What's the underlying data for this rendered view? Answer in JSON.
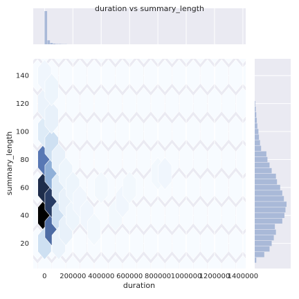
{
  "chart_data": {
    "type": "hexbin-joint",
    "title": "duration vs summary_length",
    "xlabel": "duration",
    "ylabel": "summary_length",
    "xlim": [
      -80000,
      1420000
    ],
    "ylim": [
      2,
      152
    ],
    "x_ticks": [
      0,
      200000,
      400000,
      600000,
      800000,
      1000000,
      1200000,
      1400000
    ],
    "x_tick_labels": [
      "0",
      "200000",
      "400000",
      "600000",
      "800000",
      "1000000",
      "1200000",
      "1400000"
    ],
    "y_ticks": [
      20,
      40,
      60,
      80,
      100,
      120,
      140
    ],
    "y_tick_labels": [
      "20",
      "40",
      "60",
      "80",
      "100",
      "120",
      "140"
    ],
    "grid": true,
    "colors": {
      "background": "#eaeaf2",
      "grid": "#ffffff",
      "hex_base": "#f7fbff",
      "hex_dark": "#000000",
      "hist_fill": "#a9b9d8",
      "text": "#262626"
    },
    "hexbin": {
      "x_spacing": 100000,
      "y_spacing": 20,
      "cells": [
        {
          "x": 0,
          "y": 40,
          "v": 1.0
        },
        {
          "x": 0,
          "y": 60,
          "v": 0.85
        },
        {
          "x": 0,
          "y": 80,
          "v": 0.55
        },
        {
          "x": 0,
          "y": 100,
          "v": 0.1
        },
        {
          "x": 0,
          "y": 120,
          "v": 0.05
        },
        {
          "x": 0,
          "y": 140,
          "v": 0.03
        },
        {
          "x": 0,
          "y": 20,
          "v": 0.15
        },
        {
          "x": 50000,
          "y": 30,
          "v": 0.6
        },
        {
          "x": 50000,
          "y": 50,
          "v": 0.8
        },
        {
          "x": 50000,
          "y": 70,
          "v": 0.35
        },
        {
          "x": 50000,
          "y": 90,
          "v": 0.15
        },
        {
          "x": 50000,
          "y": 110,
          "v": 0.06
        },
        {
          "x": 50000,
          "y": 130,
          "v": 0.04
        },
        {
          "x": 100000,
          "y": 40,
          "v": 0.15
        },
        {
          "x": 100000,
          "y": 60,
          "v": 0.1
        },
        {
          "x": 100000,
          "y": 80,
          "v": 0.06
        },
        {
          "x": 100000,
          "y": 20,
          "v": 0.05
        },
        {
          "x": 150000,
          "y": 30,
          "v": 0.06
        },
        {
          "x": 150000,
          "y": 50,
          "v": 0.06
        },
        {
          "x": 150000,
          "y": 70,
          "v": 0.04
        },
        {
          "x": 200000,
          "y": 40,
          "v": 0.04
        },
        {
          "x": 200000,
          "y": 60,
          "v": 0.04
        },
        {
          "x": 250000,
          "y": 50,
          "v": 0.03
        },
        {
          "x": 300000,
          "y": 40,
          "v": 0.03
        },
        {
          "x": 350000,
          "y": 30,
          "v": 0.02
        },
        {
          "x": 400000,
          "y": 60,
          "v": 0.02
        },
        {
          "x": 500000,
          "y": 40,
          "v": 0.02
        },
        {
          "x": 550000,
          "y": 50,
          "v": 0.03
        },
        {
          "x": 600000,
          "y": 60,
          "v": 0.02
        },
        {
          "x": 800000,
          "y": 70,
          "v": 0.02
        },
        {
          "x": 850000,
          "y": 70,
          "v": 0.03
        }
      ]
    },
    "marginal_x": {
      "bin_starts": [
        0,
        20000,
        40000,
        60000,
        80000,
        100000,
        120000,
        140000
      ],
      "bin_width": 20000,
      "counts": [
        100,
        12,
        4,
        2,
        1,
        1,
        0.5,
        0.5
      ]
    },
    "marginal_y": {
      "bin_starts": [
        6,
        10,
        14,
        18,
        22,
        26,
        30,
        34,
        38,
        42,
        46,
        50,
        54,
        58,
        62,
        66,
        70,
        74,
        78,
        82,
        86,
        90,
        94,
        98,
        102,
        106,
        110,
        114,
        118
      ],
      "bin_width": 4,
      "counts": [
        3,
        18,
        28,
        32,
        36,
        40,
        38,
        52,
        56,
        58,
        60,
        55,
        52,
        48,
        42,
        40,
        32,
        28,
        24,
        22,
        12,
        10,
        8,
        7,
        5,
        4,
        3,
        2,
        1
      ]
    }
  }
}
